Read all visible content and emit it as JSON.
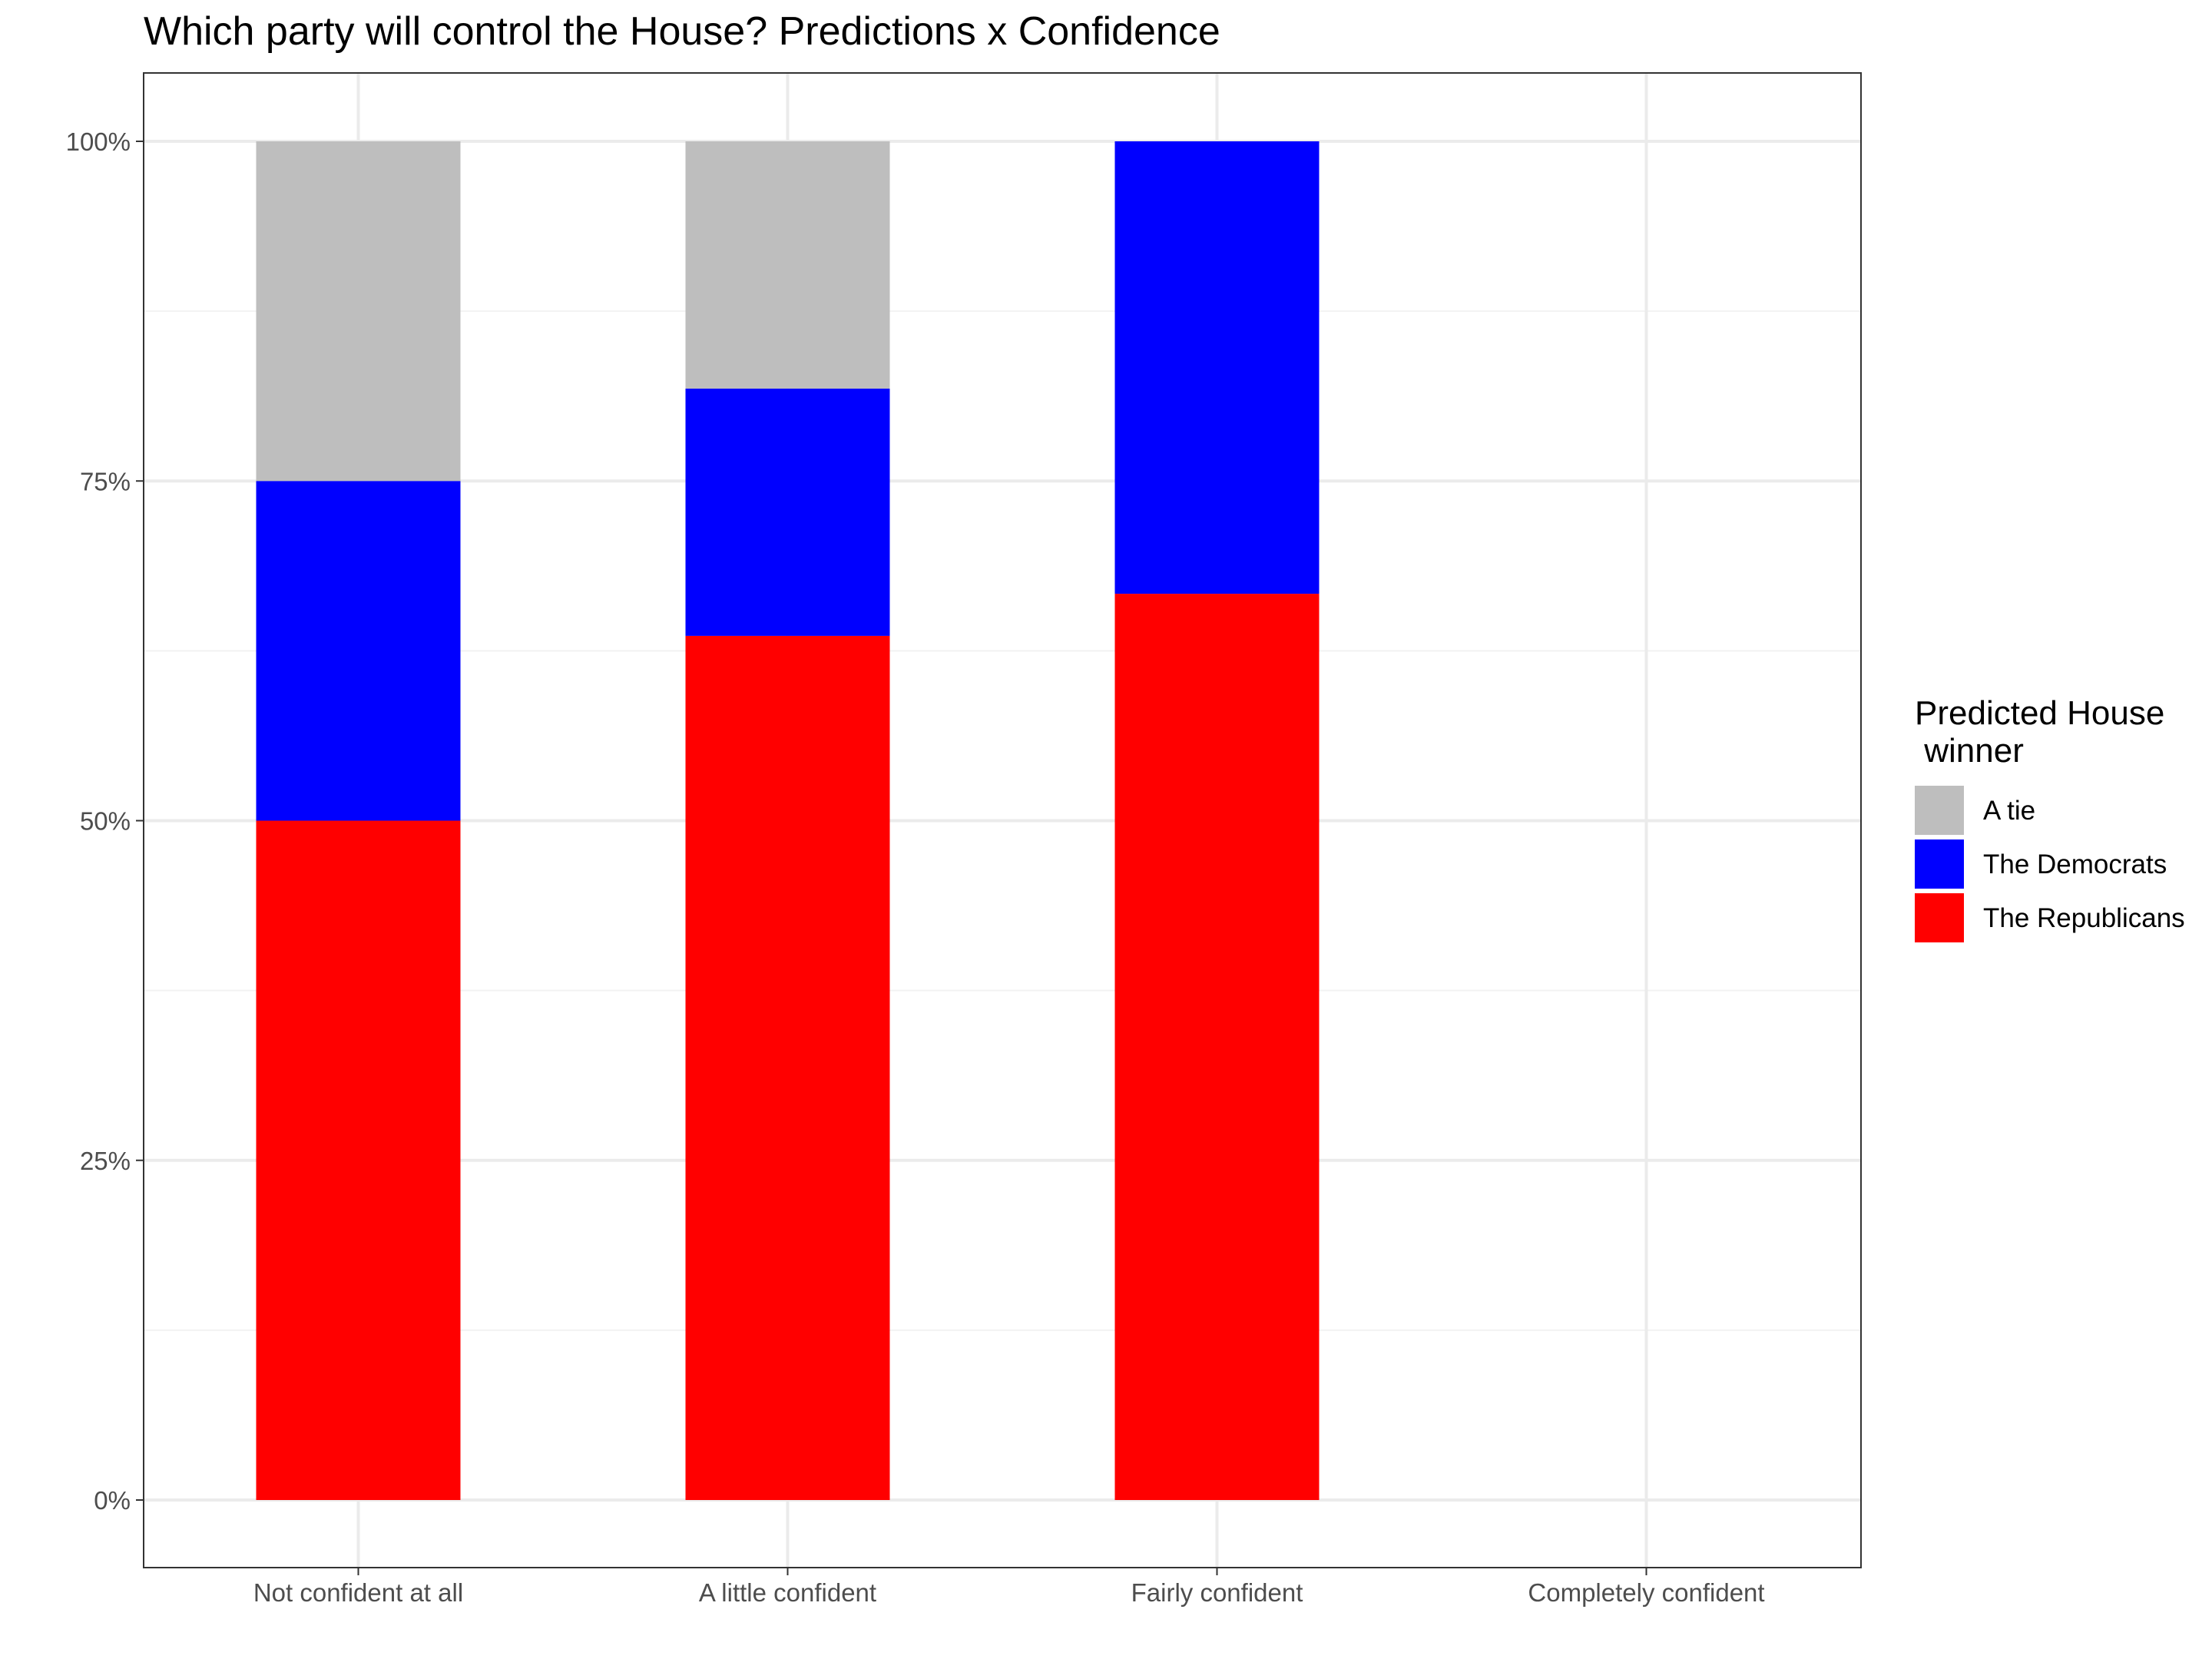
{
  "chart_data": {
    "type": "bar",
    "stacked": true,
    "title": "Which party will control the House? Predictions x Confidence",
    "xlabel": "",
    "ylabel": "",
    "categories": [
      "Not confident at all",
      "A little confident",
      "Fairly confident",
      "Completely confident"
    ],
    "ylim": [
      0,
      1
    ],
    "yticks": [
      0,
      0.25,
      0.5,
      0.75,
      1
    ],
    "ytick_labels": [
      "0%",
      "25%",
      "50%",
      "75%",
      "100%"
    ],
    "grid": true,
    "legend": {
      "title_lines": [
        "Predicted House",
        " winner"
      ],
      "position": "right",
      "entries": [
        "A tie",
        "The Democrats",
        "The Republicans"
      ]
    },
    "series": [
      {
        "name": "The Republicans",
        "color": "#ff0000",
        "values": [
          0.5,
          0.636,
          0.667,
          0
        ]
      },
      {
        "name": "The Democrats",
        "color": "#0000ff",
        "values": [
          0.25,
          0.182,
          0.333,
          0
        ]
      },
      {
        "name": "A tie",
        "color": "#bebebe",
        "values": [
          0.25,
          0.182,
          0,
          0
        ]
      }
    ]
  }
}
